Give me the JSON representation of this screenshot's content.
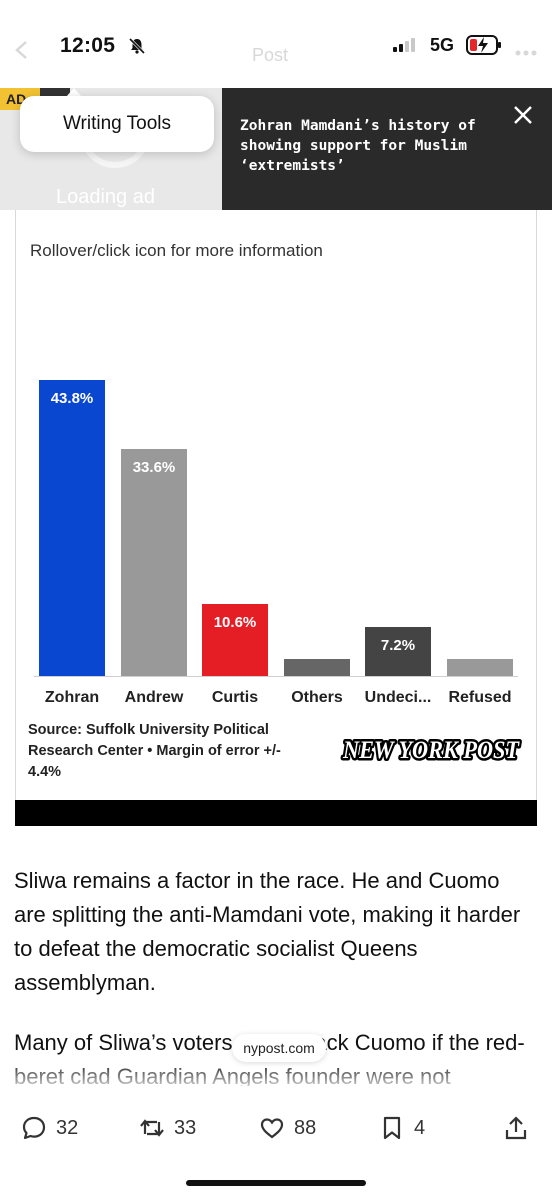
{
  "status_bar": {
    "time": "12:05",
    "network": "5G",
    "bell_icon": "bell-slash-icon",
    "battery_icon": "battery-charging-icon"
  },
  "nav": {
    "title": "Post"
  },
  "ad": {
    "badge": "AD",
    "loading_text": "Loading ad",
    "writing_tools": "Writing Tools"
  },
  "headline": {
    "text": "Zohran Mamdani’s history of showing support for Muslim ‘extremists’"
  },
  "chart_hint": "Rollover/click icon for more information",
  "chart_data": {
    "type": "bar",
    "categories": [
      "Zohran",
      "Andrew",
      "Curtis",
      "Others",
      "Undeci...",
      "Refused"
    ],
    "values": [
      43.8,
      33.6,
      10.6,
      2.5,
      7.2,
      2.5
    ],
    "labels": [
      "43.8%",
      "33.6%",
      "10.6%",
      "",
      "7.2%",
      ""
    ],
    "colors": [
      "#0a47d1",
      "#999999",
      "#e51d25",
      "#666666",
      "#444444",
      "#999999"
    ],
    "ylim": [
      0,
      43.8
    ]
  },
  "source": "Source: Suffolk University Political Research Center • Margin of error +/- 4.4%",
  "logo_text": "NEW YORK POST",
  "article": {
    "p1": "Sliwa remains a factor in the race. He and Cuomo are splitting the anti-Mamdani vote, making it harder to defeat the democratic socialist Queens assemblyman.",
    "p2": "Many of Sliwa’s voters would back Cuomo if the red-beret clad Guardian Angels founder were not"
  },
  "url_pill": "nypost.com",
  "actions": {
    "replies": "32",
    "reposts": "33",
    "likes": "88",
    "bookmarks": "4"
  }
}
